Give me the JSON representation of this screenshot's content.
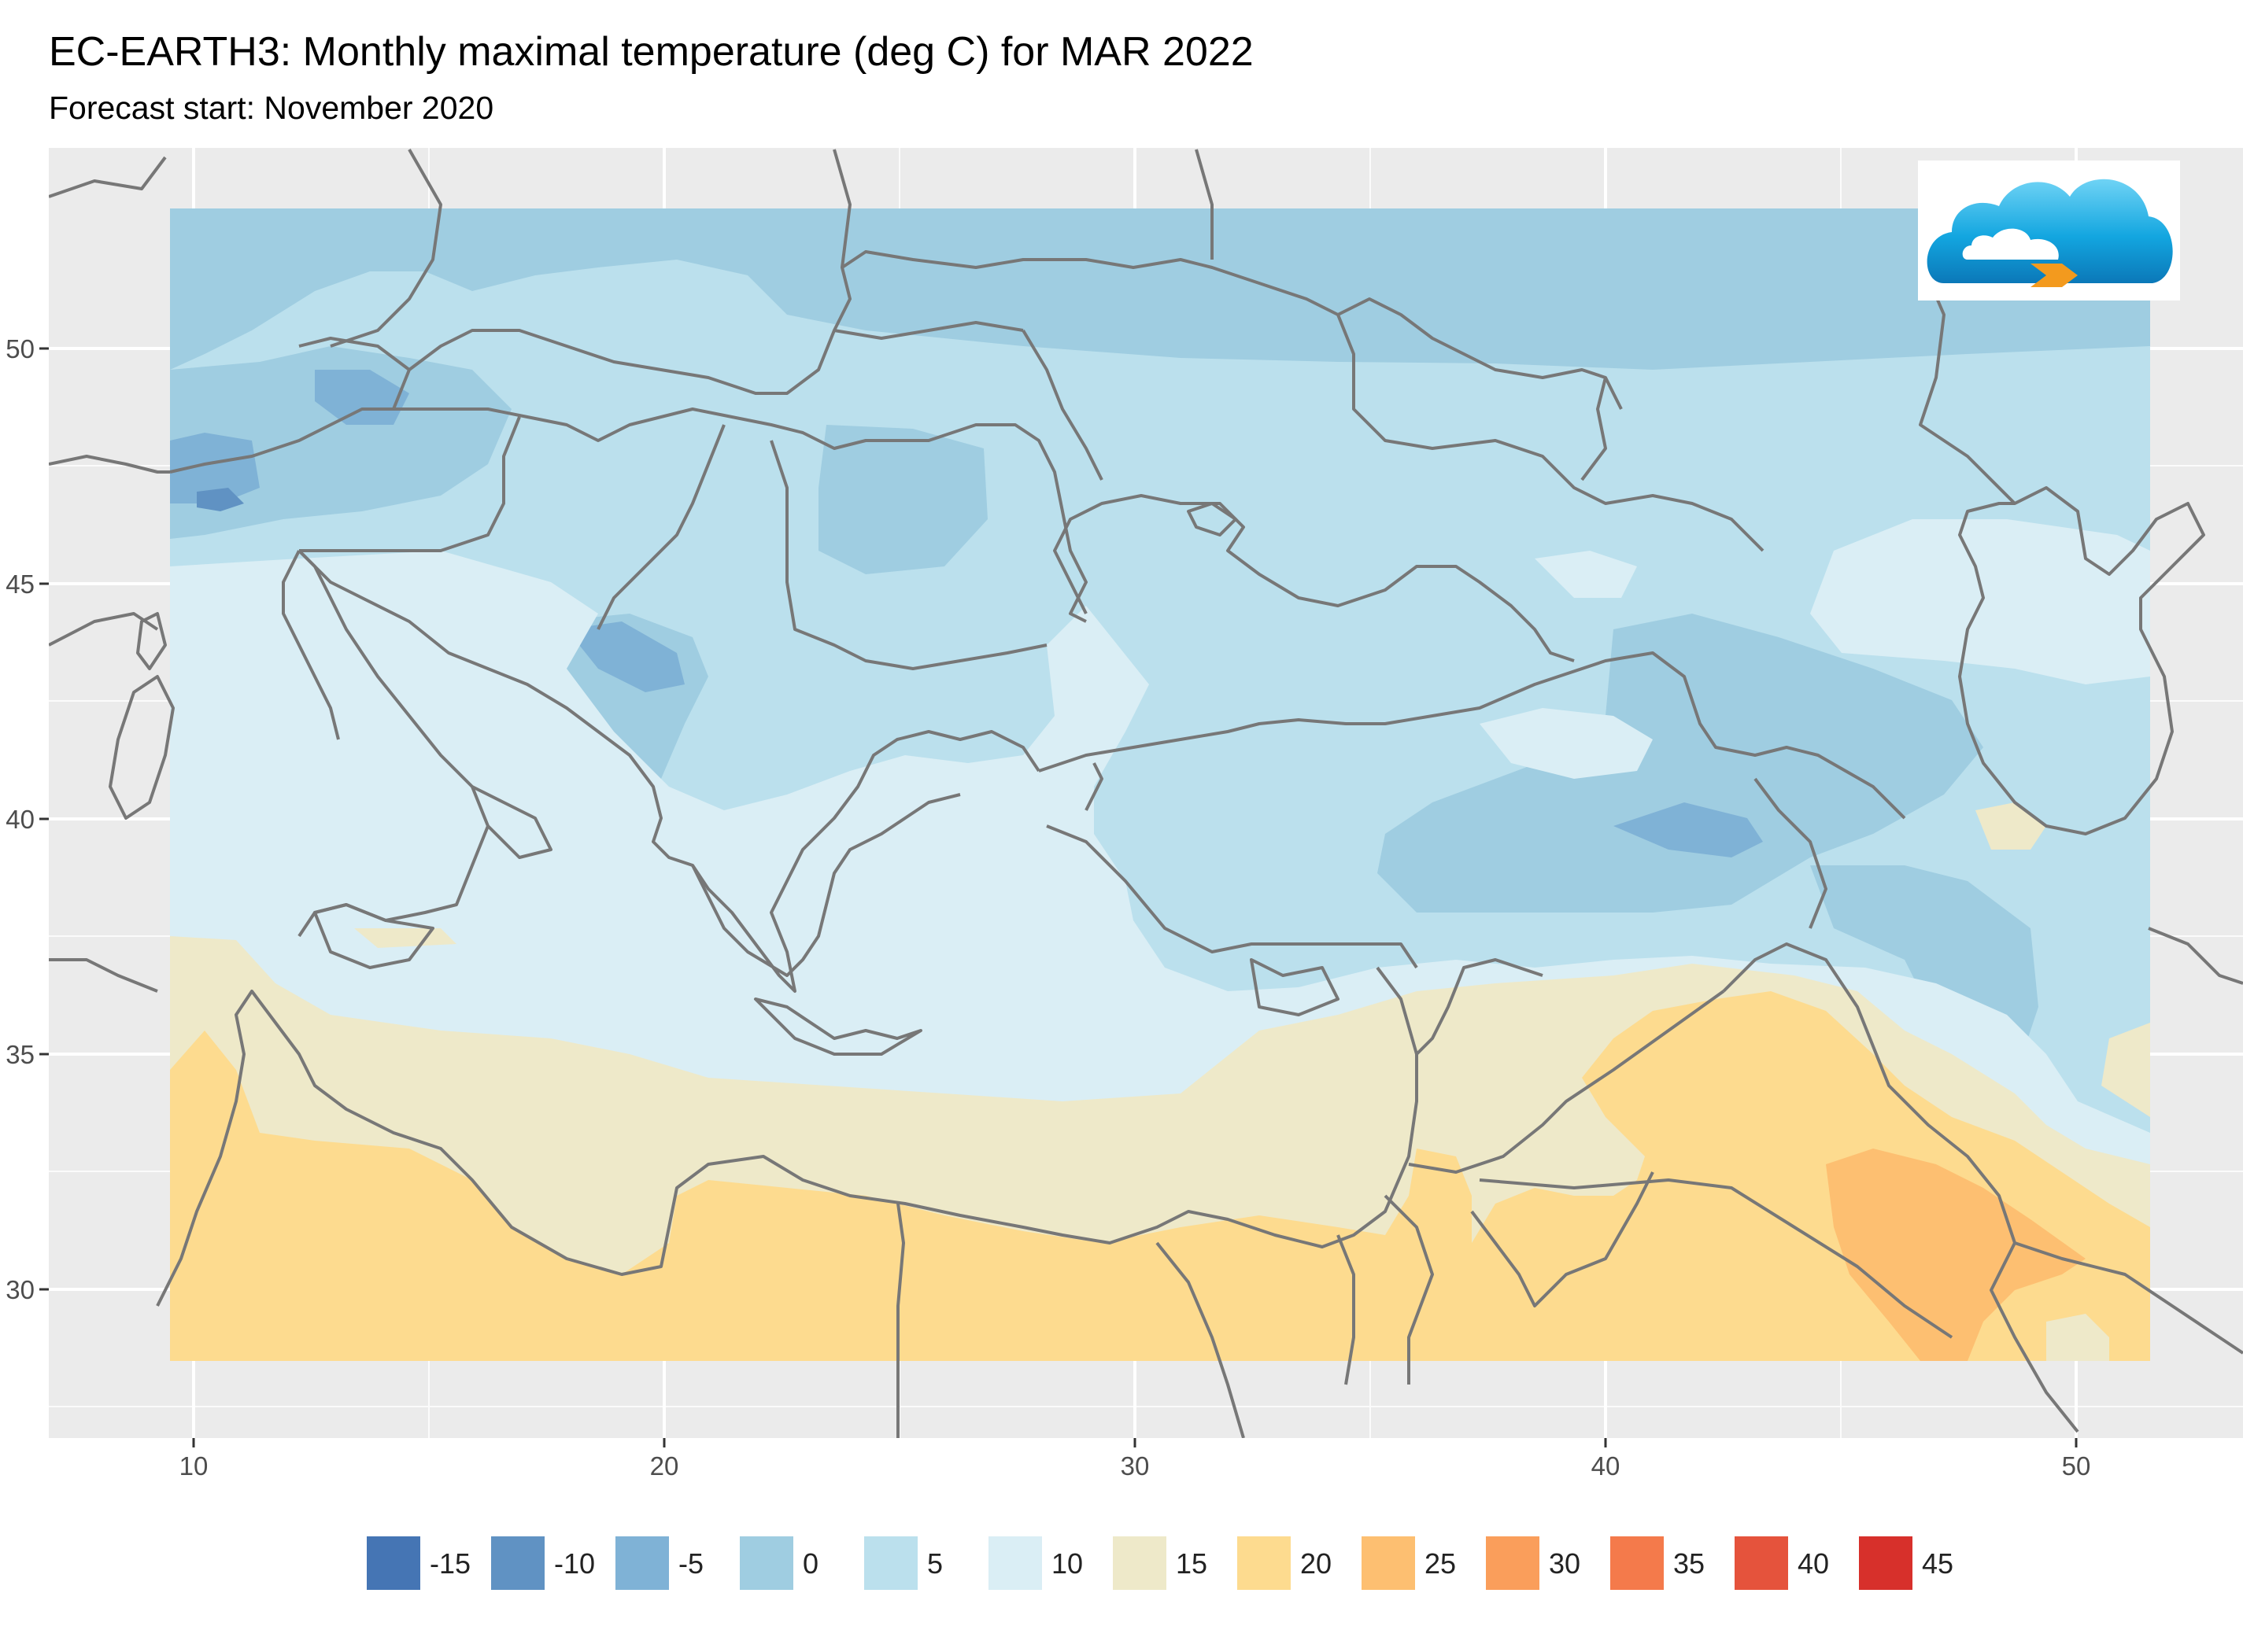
{
  "title": "EC-EARTH3: Monthly maximal temperature (deg C) for MAR 2022",
  "subtitle": "Forecast start: November 2020",
  "logo_icon": "cloud-logo-icon",
  "map": {
    "panel_color": "#ebebeb",
    "grid_color": "#ffffff",
    "border_color": "#777777",
    "x_ticks": [
      "10",
      "20",
      "30",
      "40",
      "50"
    ],
    "y_ticks": [
      "50",
      "45",
      "40",
      "35",
      "30"
    ],
    "x_range_lon": [
      7,
      53
    ],
    "y_range_lat": [
      27,
      54
    ]
  },
  "legend": [
    {
      "value": "-15",
      "color": "#4575b4"
    },
    {
      "value": "-10",
      "color": "#6092c3"
    },
    {
      "value": "-5",
      "color": "#7fb2d6"
    },
    {
      "value": "0",
      "color": "#9fcde1"
    },
    {
      "value": "5",
      "color": "#bbe0ed"
    },
    {
      "value": "10",
      "color": "#daeef5"
    },
    {
      "value": "15",
      "color": "#eee9c9"
    },
    {
      "value": "20",
      "color": "#fddb8f"
    },
    {
      "value": "25",
      "color": "#fdbf71"
    },
    {
      "value": "30",
      "color": "#fa9e5b"
    },
    {
      "value": "35",
      "color": "#f47a4b"
    },
    {
      "value": "40",
      "color": "#e5533c"
    },
    {
      "value": "45",
      "color": "#d7302b"
    }
  ]
}
